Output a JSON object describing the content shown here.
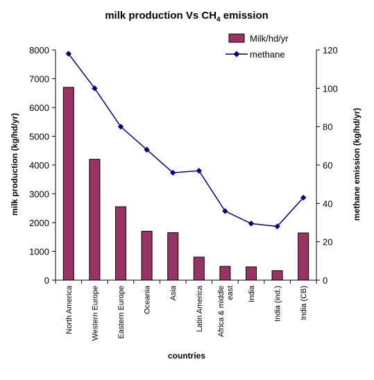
{
  "chart_data": {
    "type": "bar+line",
    "title": "milk production Vs CH4 emission",
    "title_main": "milk production Vs CH",
    "title_sub": "4",
    "title_tail": " emission",
    "xlabel": "countries",
    "ylabel": "milk production (kg/hd/yr)",
    "y2label": "methane emission (kg/hd/yr)",
    "categories": [
      "North America",
      "Western Europe",
      "Eastern Europe",
      "Oceania",
      "Asia",
      "Latin America",
      "Africa & middle east",
      "India",
      "India (ind.)",
      "India (CB)"
    ],
    "category_lines": [
      [
        "North America"
      ],
      [
        "Western Europe"
      ],
      [
        "Eastern Europe"
      ],
      [
        "Oceania"
      ],
      [
        "Asia"
      ],
      [
        "Latin America"
      ],
      [
        "Africa & middle",
        "east"
      ],
      [
        "India"
      ],
      [
        "India (ind.)"
      ],
      [
        "India (CB)"
      ]
    ],
    "ylim": [
      0,
      8000
    ],
    "y_ticks": [
      0,
      1000,
      2000,
      3000,
      4000,
      5000,
      6000,
      7000,
      8000
    ],
    "y2lim": [
      0,
      120
    ],
    "y2_ticks": [
      0,
      20,
      40,
      60,
      80,
      100,
      120
    ],
    "grid": false,
    "legend_position": "top-right",
    "series": [
      {
        "name": "Milk/hd/yr",
        "type": "bar",
        "axis": "left",
        "color": "#993366",
        "values": [
          6700,
          4200,
          2550,
          1700,
          1650,
          800,
          480,
          460,
          330,
          1640
        ]
      },
      {
        "name": "methane",
        "type": "line",
        "axis": "right",
        "color": "#000080",
        "values": [
          118,
          100,
          80,
          68,
          56,
          57,
          36,
          29.5,
          28,
          43
        ]
      }
    ]
  }
}
